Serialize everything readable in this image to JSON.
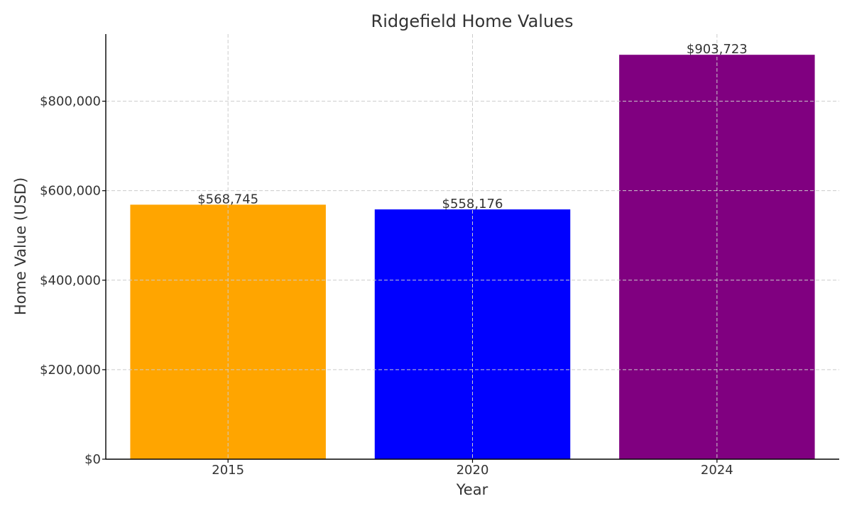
{
  "chart_data": {
    "type": "bar",
    "title": "Ridgefield Home Values",
    "xlabel": "Year",
    "ylabel": "Home Value (USD)",
    "categories": [
      "2015",
      "2020",
      "2024"
    ],
    "values": [
      568745,
      558176,
      903723
    ],
    "value_labels": [
      "$568,745",
      "$558,176",
      "$903,723"
    ],
    "colors": [
      "#FFA500",
      "#0000FF",
      "#800080"
    ],
    "ylim": [
      0,
      950000
    ],
    "yticks": [
      0,
      200000,
      400000,
      600000,
      800000
    ],
    "ytick_labels": [
      "$0",
      "$200,000",
      "$400,000",
      "$600,000",
      "$800,000"
    ],
    "grid": true
  }
}
